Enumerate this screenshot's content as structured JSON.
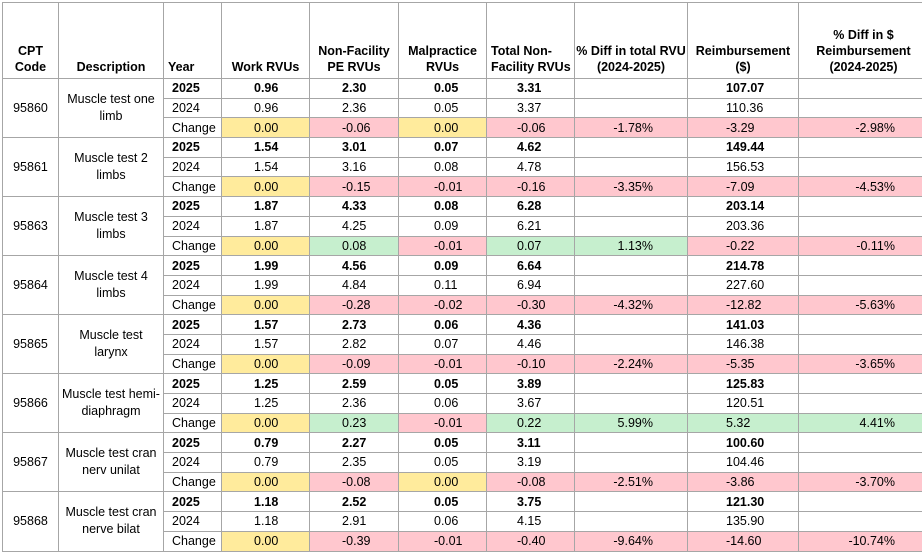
{
  "headers": {
    "cpt": "CPT Code",
    "description": "Description",
    "year": "Year",
    "work": "Work RVUs",
    "pe": "Non-Facility PE RVUs",
    "mal": "Malpractice RVUs",
    "total": "Total Non-Facility RVUs",
    "pct_rvu": "% Diff in total RVU (2024-2025)",
    "reimb": "Reimbursement ($)",
    "pct_reimb": "% Diff in $ Reimbursement (2024-2025)"
  },
  "highlight_colors": {
    "yellow": "#ffeb9c",
    "red": "#ffc7ce",
    "green": "#c6efce"
  },
  "groups": [
    {
      "code": "95860",
      "description": "Muscle test one limb",
      "rows": [
        {
          "year": "2025",
          "work": "0.96",
          "pe": "2.30",
          "mal": "0.05",
          "total": "3.31",
          "pct_rvu": "",
          "reimb": "107.07",
          "pct_reimb": ""
        },
        {
          "year": "2024",
          "work": "0.96",
          "pe": "2.36",
          "mal": "0.05",
          "total": "3.37",
          "pct_rvu": "",
          "reimb": "110.36",
          "pct_reimb": ""
        },
        {
          "year": "Change",
          "work": "0.00",
          "pe": "-0.06",
          "mal": "0.00",
          "total": "-0.06",
          "pct_rvu": "-1.78%",
          "reimb": "-3.29",
          "pct_reimb": "-2.98%"
        }
      ],
      "change_colors": {
        "work": "yellow",
        "pe": "red",
        "mal": "yellow",
        "total": "red",
        "pct_rvu": "red",
        "reimb": "red",
        "pct_reimb": "red"
      }
    },
    {
      "code": "95861",
      "description": "Muscle test 2 limbs",
      "rows": [
        {
          "year": "2025",
          "work": "1.54",
          "pe": "3.01",
          "mal": "0.07",
          "total": "4.62",
          "pct_rvu": "",
          "reimb": "149.44",
          "pct_reimb": ""
        },
        {
          "year": "2024",
          "work": "1.54",
          "pe": "3.16",
          "mal": "0.08",
          "total": "4.78",
          "pct_rvu": "",
          "reimb": "156.53",
          "pct_reimb": ""
        },
        {
          "year": "Change",
          "work": "0.00",
          "pe": "-0.15",
          "mal": "-0.01",
          "total": "-0.16",
          "pct_rvu": "-3.35%",
          "reimb": "-7.09",
          "pct_reimb": "-4.53%"
        }
      ],
      "change_colors": {
        "work": "yellow",
        "pe": "red",
        "mal": "red",
        "total": "red",
        "pct_rvu": "red",
        "reimb": "red",
        "pct_reimb": "red"
      }
    },
    {
      "code": "95863",
      "description": "Muscle test 3 limbs",
      "rows": [
        {
          "year": "2025",
          "work": "1.87",
          "pe": "4.33",
          "mal": "0.08",
          "total": "6.28",
          "pct_rvu": "",
          "reimb": "203.14",
          "pct_reimb": ""
        },
        {
          "year": "2024",
          "work": "1.87",
          "pe": "4.25",
          "mal": "0.09",
          "total": "6.21",
          "pct_rvu": "",
          "reimb": "203.36",
          "pct_reimb": ""
        },
        {
          "year": "Change",
          "work": "0.00",
          "pe": "0.08",
          "mal": "-0.01",
          "total": "0.07",
          "pct_rvu": "1.13%",
          "reimb": "-0.22",
          "pct_reimb": "-0.11%"
        }
      ],
      "change_colors": {
        "work": "yellow",
        "pe": "green",
        "mal": "red",
        "total": "green",
        "pct_rvu": "green",
        "reimb": "red",
        "pct_reimb": "red"
      }
    },
    {
      "code": "95864",
      "description": "Muscle test 4 limbs",
      "rows": [
        {
          "year": "2025",
          "work": "1.99",
          "pe": "4.56",
          "mal": "0.09",
          "total": "6.64",
          "pct_rvu": "",
          "reimb": "214.78",
          "pct_reimb": ""
        },
        {
          "year": "2024",
          "work": "1.99",
          "pe": "4.84",
          "mal": "0.11",
          "total": "6.94",
          "pct_rvu": "",
          "reimb": "227.60",
          "pct_reimb": ""
        },
        {
          "year": "Change",
          "work": "0.00",
          "pe": "-0.28",
          "mal": "-0.02",
          "total": "-0.30",
          "pct_rvu": "-4.32%",
          "reimb": "-12.82",
          "pct_reimb": "-5.63%"
        }
      ],
      "change_colors": {
        "work": "yellow",
        "pe": "red",
        "mal": "red",
        "total": "red",
        "pct_rvu": "red",
        "reimb": "red",
        "pct_reimb": "red"
      }
    },
    {
      "code": "95865",
      "description": "Muscle test larynx",
      "rows": [
        {
          "year": "2025",
          "work": "1.57",
          "pe": "2.73",
          "mal": "0.06",
          "total": "4.36",
          "pct_rvu": "",
          "reimb": "141.03",
          "pct_reimb": ""
        },
        {
          "year": "2024",
          "work": "1.57",
          "pe": "2.82",
          "mal": "0.07",
          "total": "4.46",
          "pct_rvu": "",
          "reimb": "146.38",
          "pct_reimb": ""
        },
        {
          "year": "Change",
          "work": "0.00",
          "pe": "-0.09",
          "mal": "-0.01",
          "total": "-0.10",
          "pct_rvu": "-2.24%",
          "reimb": "-5.35",
          "pct_reimb": "-3.65%"
        }
      ],
      "change_colors": {
        "work": "yellow",
        "pe": "red",
        "mal": "red",
        "total": "red",
        "pct_rvu": "red",
        "reimb": "red",
        "pct_reimb": "red"
      }
    },
    {
      "code": "95866",
      "description": "Muscle test hemi-diaphragm",
      "rows": [
        {
          "year": "2025",
          "work": "1.25",
          "pe": "2.59",
          "mal": "0.05",
          "total": "3.89",
          "pct_rvu": "",
          "reimb": "125.83",
          "pct_reimb": ""
        },
        {
          "year": "2024",
          "work": "1.25",
          "pe": "2.36",
          "mal": "0.06",
          "total": "3.67",
          "pct_rvu": "",
          "reimb": "120.51",
          "pct_reimb": ""
        },
        {
          "year": "Change",
          "work": "0.00",
          "pe": "0.23",
          "mal": "-0.01",
          "total": "0.22",
          "pct_rvu": "5.99%",
          "reimb": "5.32",
          "pct_reimb": "4.41%"
        }
      ],
      "change_colors": {
        "work": "yellow",
        "pe": "green",
        "mal": "red",
        "total": "green",
        "pct_rvu": "green",
        "reimb": "green",
        "pct_reimb": "green"
      }
    },
    {
      "code": "95867",
      "description": "Muscle test cran nerv unilat",
      "rows": [
        {
          "year": "2025",
          "work": "0.79",
          "pe": "2.27",
          "mal": "0.05",
          "total": "3.11",
          "pct_rvu": "",
          "reimb": "100.60",
          "pct_reimb": ""
        },
        {
          "year": "2024",
          "work": "0.79",
          "pe": "2.35",
          "mal": "0.05",
          "total": "3.19",
          "pct_rvu": "",
          "reimb": "104.46",
          "pct_reimb": ""
        },
        {
          "year": "Change",
          "work": "0.00",
          "pe": "-0.08",
          "mal": "0.00",
          "total": "-0.08",
          "pct_rvu": "-2.51%",
          "reimb": "-3.86",
          "pct_reimb": "-3.70%"
        }
      ],
      "change_colors": {
        "work": "yellow",
        "pe": "red",
        "mal": "yellow",
        "total": "red",
        "pct_rvu": "red",
        "reimb": "red",
        "pct_reimb": "red"
      }
    },
    {
      "code": "95868",
      "description": "Muscle test cran nerve bilat",
      "rows": [
        {
          "year": "2025",
          "work": "1.18",
          "pe": "2.52",
          "mal": "0.05",
          "total": "3.75",
          "pct_rvu": "",
          "reimb": "121.30",
          "pct_reimb": ""
        },
        {
          "year": "2024",
          "work": "1.18",
          "pe": "2.91",
          "mal": "0.06",
          "total": "4.15",
          "pct_rvu": "",
          "reimb": "135.90",
          "pct_reimb": ""
        },
        {
          "year": "Change",
          "work": "0.00",
          "pe": "-0.39",
          "mal": "-0.01",
          "total": "-0.40",
          "pct_rvu": "-9.64%",
          "reimb": "-14.60",
          "pct_reimb": "-10.74%"
        }
      ],
      "change_colors": {
        "work": "yellow",
        "pe": "red",
        "mal": "red",
        "total": "red",
        "pct_rvu": "red",
        "reimb": "red",
        "pct_reimb": "red"
      }
    }
  ]
}
